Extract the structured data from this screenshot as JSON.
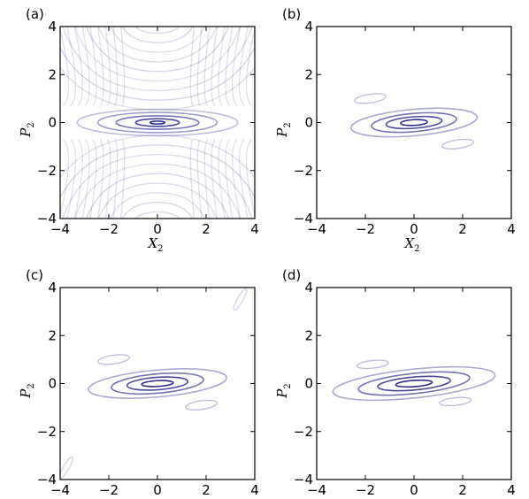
{
  "chart_data": [
    {
      "panel": "(a)",
      "type": "contour",
      "xlabel_var": "X",
      "xlabel_sub": "2",
      "ylabel_var": "P",
      "ylabel_sub": "2",
      "xlim": [
        -4,
        4
      ],
      "ylim": [
        -4,
        4
      ],
      "xticks": [
        -4,
        -2,
        0,
        2,
        4
      ],
      "yticks": [
        -4,
        -2,
        0,
        2,
        4
      ],
      "color": "#2a2a8c",
      "levels": [
        {
          "rx": 0.3,
          "ry": 0.06,
          "tilt": 0,
          "opacity": 1.0
        },
        {
          "rx": 0.9,
          "ry": 0.16,
          "tilt": 0,
          "opacity": 0.85
        },
        {
          "rx": 1.7,
          "ry": 0.28,
          "tilt": 0,
          "opacity": 0.65
        },
        {
          "rx": 2.45,
          "ry": 0.42,
          "tilt": 0,
          "opacity": 0.45
        },
        {
          "rx": 3.3,
          "ry": 0.55,
          "tilt": 0,
          "opacity": 0.3
        }
      ],
      "fringes": true
    },
    {
      "panel": "(b)",
      "type": "contour",
      "xlabel_var": "X",
      "xlabel_sub": "2",
      "ylabel_var": "P",
      "ylabel_sub": "2",
      "xlim": [
        -4,
        4
      ],
      "ylim": [
        -4,
        4
      ],
      "xticks": [
        -4,
        -2,
        0,
        2,
        4
      ],
      "yticks": [
        -4,
        -2,
        0,
        2,
        4
      ],
      "color": "#2a2a8c",
      "levels": [
        {
          "rx": 0.55,
          "ry": 0.12,
          "tilt": -3,
          "opacity": 1.0
        },
        {
          "rx": 1.15,
          "ry": 0.24,
          "tilt": -4,
          "opacity": 0.85
        },
        {
          "rx": 1.75,
          "ry": 0.38,
          "tilt": -5,
          "opacity": 0.65
        },
        {
          "rx": 2.6,
          "ry": 0.55,
          "tilt": -5,
          "opacity": 0.4
        }
      ],
      "blobs": [
        {
          "cx": -1.8,
          "cy": 1.0,
          "rx": 0.65,
          "ry": 0.18,
          "tilt": -8,
          "opacity": 0.3
        },
        {
          "cx": 1.8,
          "cy": -0.9,
          "rx": 0.65,
          "ry": 0.18,
          "tilt": -8,
          "opacity": 0.3
        }
      ]
    },
    {
      "panel": "(c)",
      "type": "contour",
      "xlabel_var": "",
      "xlabel_sub": "",
      "ylabel_var": "P",
      "ylabel_sub": "2",
      "xlim": [
        -4,
        4
      ],
      "ylim": [
        -4,
        4
      ],
      "xticks": [
        -4,
        -2,
        0,
        2,
        4
      ],
      "yticks": [
        -4,
        -2,
        0,
        2,
        4
      ],
      "color": "#2a2a8c",
      "levels": [
        {
          "rx": 0.65,
          "ry": 0.12,
          "tilt": -3,
          "opacity": 1.0
        },
        {
          "rx": 1.25,
          "ry": 0.26,
          "tilt": -4,
          "opacity": 0.85
        },
        {
          "rx": 1.9,
          "ry": 0.4,
          "tilt": -5,
          "opacity": 0.65
        },
        {
          "rx": 2.85,
          "ry": 0.56,
          "tilt": -5,
          "opacity": 0.4
        }
      ],
      "blobs": [
        {
          "cx": -1.8,
          "cy": 1.0,
          "rx": 0.65,
          "ry": 0.18,
          "tilt": -8,
          "opacity": 0.3
        },
        {
          "cx": 1.8,
          "cy": -0.9,
          "rx": 0.65,
          "ry": 0.18,
          "tilt": -8,
          "opacity": 0.3
        },
        {
          "cx": 3.4,
          "cy": 3.5,
          "rx": 0.5,
          "ry": 0.12,
          "tilt": -60,
          "opacity": 0.2
        },
        {
          "cx": -3.75,
          "cy": -3.5,
          "rx": 0.5,
          "ry": 0.12,
          "tilt": -60,
          "opacity": 0.2
        }
      ]
    },
    {
      "panel": "(d)",
      "type": "contour",
      "xlabel_var": "",
      "xlabel_sub": "",
      "ylabel_var": "P",
      "ylabel_sub": "2",
      "xlim": [
        -4,
        4
      ],
      "ylim": [
        -4,
        4
      ],
      "xticks": [
        -4,
        -2,
        0,
        2,
        4
      ],
      "yticks": [
        -4,
        -2,
        0,
        2,
        4
      ],
      "color": "#2a2a8c",
      "levels": [
        {
          "rx": 0.75,
          "ry": 0.13,
          "tilt": -4,
          "opacity": 1.0
        },
        {
          "rx": 1.5,
          "ry": 0.27,
          "tilt": -5,
          "opacity": 0.85
        },
        {
          "rx": 2.3,
          "ry": 0.42,
          "tilt": -6,
          "opacity": 0.65
        },
        {
          "rx": 3.35,
          "ry": 0.6,
          "tilt": -6,
          "opacity": 0.4
        }
      ],
      "blobs": [
        {
          "cx": -1.7,
          "cy": 0.8,
          "rx": 0.65,
          "ry": 0.16,
          "tilt": -6,
          "opacity": 0.3
        },
        {
          "cx": 1.7,
          "cy": -0.75,
          "rx": 0.65,
          "ry": 0.16,
          "tilt": -6,
          "opacity": 0.3
        }
      ]
    }
  ]
}
